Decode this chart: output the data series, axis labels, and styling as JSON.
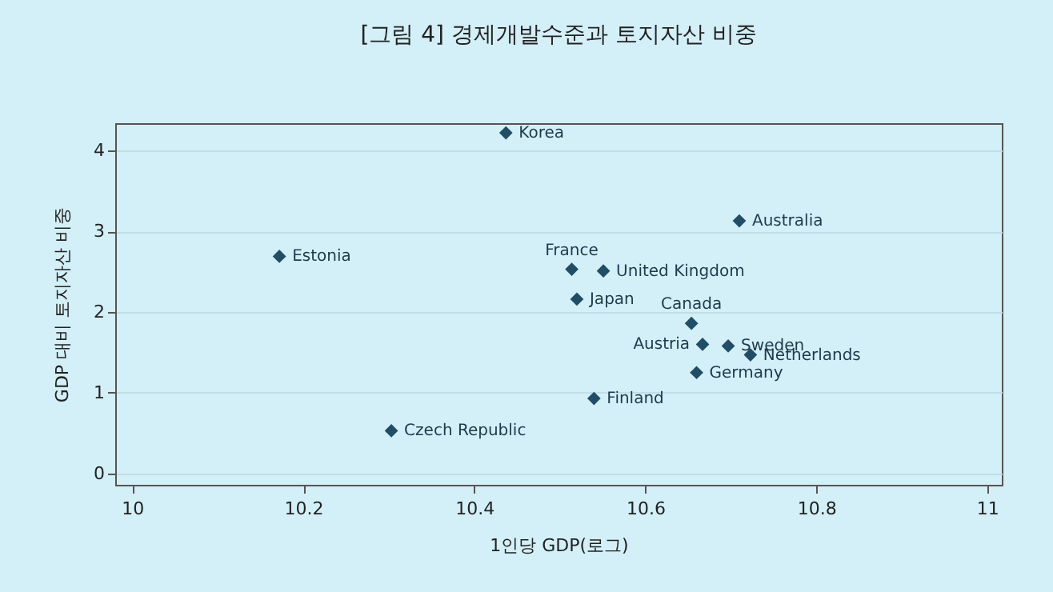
{
  "chart_data": {
    "type": "scatter",
    "title": "[그림 4] 경제개발수준과 토지자산 비중",
    "xlabel": "1인당 GDP(로그)",
    "ylabel": "GDP 대비 토지자산 비중",
    "x": [
      10.437,
      10.172,
      10.303,
      10.514,
      10.551,
      10.52,
      10.71,
      10.654,
      10.667,
      10.697,
      10.723,
      10.66,
      10.54
    ],
    "series": [
      {
        "color": "#1f4e66",
        "values": [
          4.22,
          2.69,
          0.53,
          2.53,
          2.51,
          2.16,
          3.13,
          1.86,
          1.6,
          1.58,
          1.47,
          1.25,
          0.93
        ]
      }
    ],
    "annotations": [
      {
        "text": "Korea",
        "x": 10.437,
        "y": 4.22
      },
      {
        "text": "Estonia",
        "x": 10.172,
        "y": 2.69
      },
      {
        "text": "Czech Republic",
        "x": 10.303,
        "y": 0.53
      },
      {
        "text": "France",
        "x": 10.514,
        "y": 2.53
      },
      {
        "text": "United Kingdom",
        "x": 10.551,
        "y": 2.51
      },
      {
        "text": "Japan",
        "x": 10.52,
        "y": 2.16
      },
      {
        "text": "Australia",
        "x": 10.71,
        "y": 3.13
      },
      {
        "text": "Canada",
        "x": 10.654,
        "y": 1.86
      },
      {
        "text": "Austria",
        "x": 10.667,
        "y": 1.6
      },
      {
        "text": "Sweden",
        "x": 10.697,
        "y": 1.58
      },
      {
        "text": "Netherlands",
        "x": 10.723,
        "y": 1.47
      },
      {
        "text": "Germany",
        "x": 10.66,
        "y": 1.25
      },
      {
        "text": "Finland",
        "x": 10.54,
        "y": 0.93
      }
    ],
    "xlim": [
      9.98,
      11.017
    ],
    "ylim": [
      -0.14,
      4.34
    ],
    "xticks": [
      10,
      10.2,
      10.4,
      10.6,
      10.8,
      11
    ],
    "yticks": [
      0,
      1,
      2,
      3,
      4
    ],
    "grid": "y",
    "marker": "diamond"
  }
}
